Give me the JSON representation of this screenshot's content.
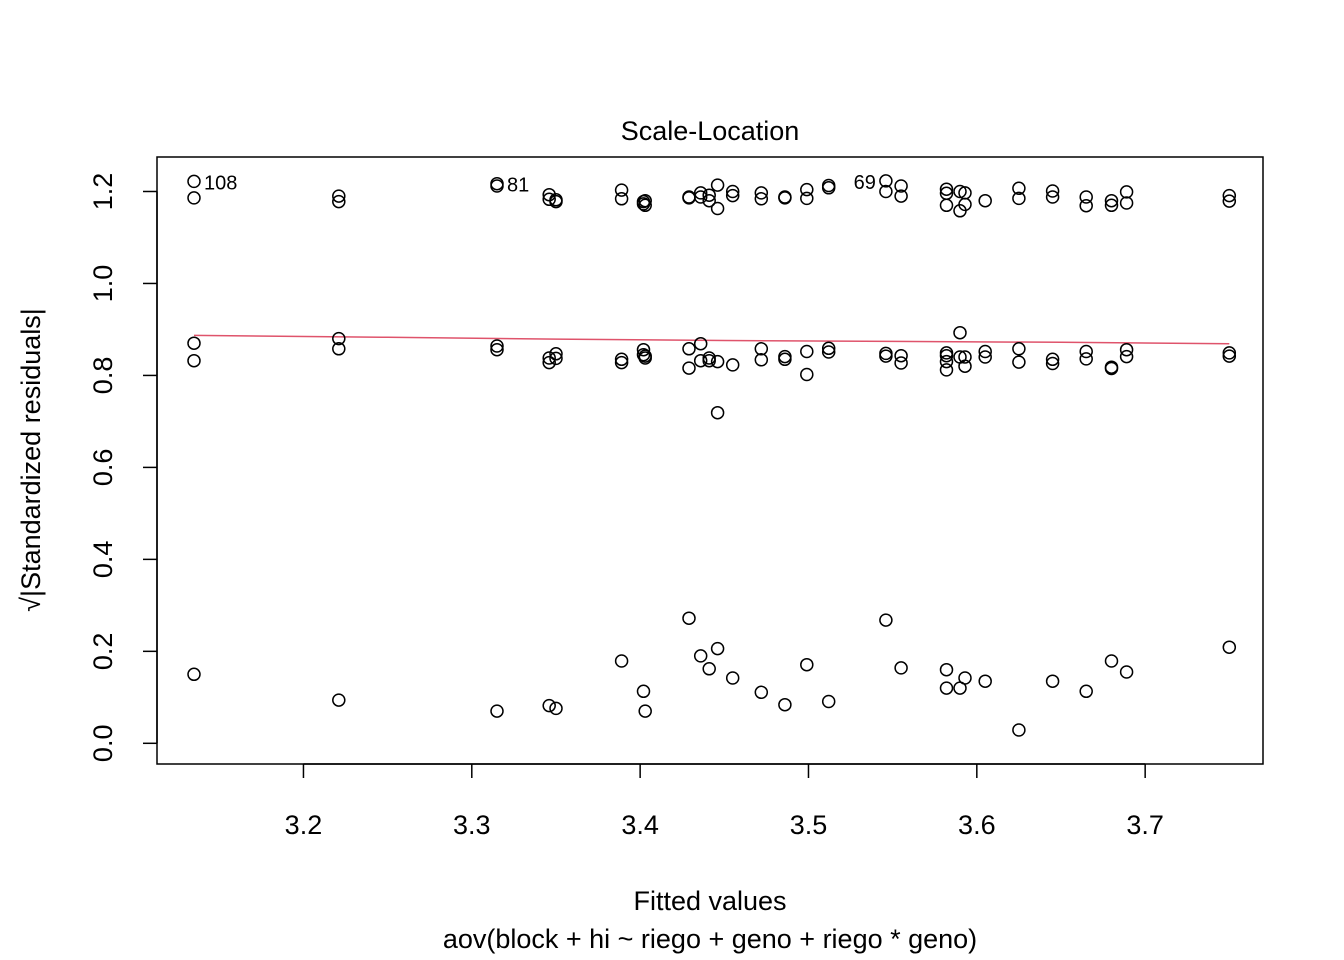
{
  "chart_data": {
    "type": "scatter",
    "title": "Scale-Location",
    "xlabel": "Fitted values",
    "subtitle": "aov(block + hi ~ riego + geno + riego * geno)",
    "ylabel": "√|Standardized residuals|",
    "ylabel_sqrt": "√",
    "ylabel_text": "|Standardized residuals|",
    "xlim": [
      3.113,
      3.77
    ],
    "ylim": [
      -0.045,
      1.275
    ],
    "x_ticks": [
      3.2,
      3.3,
      3.4,
      3.5,
      3.6,
      3.7
    ],
    "x_tick_labels": [
      "3.2",
      "3.3",
      "3.4",
      "3.5",
      "3.6",
      "3.7"
    ],
    "y_ticks": [
      0.0,
      0.2,
      0.4,
      0.6,
      0.8,
      1.0,
      1.2
    ],
    "y_tick_labels": [
      "0.0",
      "0.2",
      "0.4",
      "0.6",
      "0.8",
      "1.0",
      "1.2"
    ],
    "grid": false,
    "marker": "open-circle",
    "colors": {
      "points": "#000000",
      "smoother": "#DF536B"
    },
    "points": [
      [
        3.135,
        1.222
      ],
      [
        3.135,
        1.186
      ],
      [
        3.135,
        0.87
      ],
      [
        3.135,
        0.832
      ],
      [
        3.135,
        0.15
      ],
      [
        3.221,
        1.19
      ],
      [
        3.221,
        1.178
      ],
      [
        3.221,
        0.88
      ],
      [
        3.221,
        0.858
      ],
      [
        3.221,
        0.094
      ],
      [
        3.315,
        1.217
      ],
      [
        3.315,
        1.212
      ],
      [
        3.315,
        0.864
      ],
      [
        3.315,
        0.856
      ],
      [
        3.315,
        0.07
      ],
      [
        3.346,
        1.193
      ],
      [
        3.346,
        1.183
      ],
      [
        3.346,
        0.838
      ],
      [
        3.346,
        0.828
      ],
      [
        3.346,
        0.082
      ],
      [
        3.35,
        1.182
      ],
      [
        3.35,
        1.178
      ],
      [
        3.35,
        0.847
      ],
      [
        3.35,
        0.837
      ],
      [
        3.35,
        0.076
      ],
      [
        3.389,
        1.203
      ],
      [
        3.389,
        1.184
      ],
      [
        3.389,
        0.835
      ],
      [
        3.389,
        0.828
      ],
      [
        3.389,
        0.179
      ],
      [
        3.402,
        1.178
      ],
      [
        3.402,
        1.173
      ],
      [
        3.402,
        0.856
      ],
      [
        3.402,
        0.845
      ],
      [
        3.402,
        0.113
      ],
      [
        3.403,
        1.18
      ],
      [
        3.403,
        1.17
      ],
      [
        3.403,
        0.842
      ],
      [
        3.403,
        0.838
      ],
      [
        3.403,
        0.07
      ],
      [
        3.429,
        1.188
      ],
      [
        3.429,
        1.186
      ],
      [
        3.429,
        0.858
      ],
      [
        3.429,
        0.816
      ],
      [
        3.429,
        0.272
      ],
      [
        3.436,
        1.197
      ],
      [
        3.436,
        1.188
      ],
      [
        3.436,
        0.869
      ],
      [
        3.436,
        0.832
      ],
      [
        3.436,
        0.19
      ],
      [
        3.441,
        1.192
      ],
      [
        3.441,
        1.18
      ],
      [
        3.441,
        0.838
      ],
      [
        3.441,
        0.832
      ],
      [
        3.441,
        0.162
      ],
      [
        3.446,
        1.214
      ],
      [
        3.446,
        1.163
      ],
      [
        3.446,
        0.83
      ],
      [
        3.446,
        0.719
      ],
      [
        3.446,
        0.206
      ],
      [
        3.455,
        1.2
      ],
      [
        3.455,
        1.191
      ],
      [
        3.455,
        0.823
      ],
      [
        3.455,
        0.142
      ],
      [
        3.472,
        1.197
      ],
      [
        3.472,
        1.184
      ],
      [
        3.472,
        0.858
      ],
      [
        3.472,
        0.834
      ],
      [
        3.472,
        0.111
      ],
      [
        3.486,
        1.188
      ],
      [
        3.486,
        1.186
      ],
      [
        3.486,
        0.841
      ],
      [
        3.486,
        0.835
      ],
      [
        3.486,
        0.084
      ],
      [
        3.499,
        1.204
      ],
      [
        3.499,
        1.185
      ],
      [
        3.499,
        0.852
      ],
      [
        3.499,
        0.802
      ],
      [
        3.499,
        0.171
      ],
      [
        3.512,
        1.213
      ],
      [
        3.512,
        1.208
      ],
      [
        3.512,
        0.859
      ],
      [
        3.512,
        0.851
      ],
      [
        3.512,
        0.091
      ],
      [
        3.546,
        1.223
      ],
      [
        3.546,
        1.2
      ],
      [
        3.546,
        0.848
      ],
      [
        3.546,
        0.842
      ],
      [
        3.546,
        0.268
      ],
      [
        3.555,
        1.212
      ],
      [
        3.555,
        1.19
      ],
      [
        3.555,
        0.843
      ],
      [
        3.555,
        0.827
      ],
      [
        3.555,
        0.164
      ],
      [
        3.582,
        1.205
      ],
      [
        3.582,
        1.196
      ],
      [
        3.582,
        1.17
      ],
      [
        3.582,
        0.849
      ],
      [
        3.582,
        0.843
      ],
      [
        3.582,
        0.83
      ],
      [
        3.582,
        0.812
      ],
      [
        3.582,
        0.16
      ],
      [
        3.582,
        0.12
      ],
      [
        3.59,
        1.2
      ],
      [
        3.59,
        1.158
      ],
      [
        3.59,
        0.893
      ],
      [
        3.59,
        0.84
      ],
      [
        3.59,
        0.12
      ],
      [
        3.593,
        1.197
      ],
      [
        3.593,
        1.172
      ],
      [
        3.593,
        0.84
      ],
      [
        3.593,
        0.82
      ],
      [
        3.593,
        0.142
      ],
      [
        3.605,
        1.18
      ],
      [
        3.605,
        0.852
      ],
      [
        3.605,
        0.84
      ],
      [
        3.605,
        0.135
      ],
      [
        3.625,
        1.207
      ],
      [
        3.625,
        1.185
      ],
      [
        3.625,
        0.858
      ],
      [
        3.625,
        0.829
      ],
      [
        3.625,
        0.029
      ],
      [
        3.645,
        1.201
      ],
      [
        3.645,
        1.188
      ],
      [
        3.645,
        0.835
      ],
      [
        3.645,
        0.826
      ],
      [
        3.645,
        0.135
      ],
      [
        3.665,
        1.188
      ],
      [
        3.665,
        1.169
      ],
      [
        3.665,
        0.852
      ],
      [
        3.665,
        0.836
      ],
      [
        3.665,
        0.113
      ],
      [
        3.68,
        1.18
      ],
      [
        3.68,
        1.17
      ],
      [
        3.68,
        0.818
      ],
      [
        3.68,
        0.815
      ],
      [
        3.68,
        0.179
      ],
      [
        3.689,
        1.199
      ],
      [
        3.689,
        1.175
      ],
      [
        3.689,
        0.856
      ],
      [
        3.689,
        0.841
      ],
      [
        3.689,
        0.155
      ],
      [
        3.75,
        1.191
      ],
      [
        3.75,
        1.179
      ],
      [
        3.75,
        0.849
      ],
      [
        3.75,
        0.842
      ],
      [
        3.75,
        0.209
      ]
    ],
    "smoother": [
      [
        3.135,
        0.887
      ],
      [
        3.25,
        0.883
      ],
      [
        3.35,
        0.879
      ],
      [
        3.45,
        0.876
      ],
      [
        3.55,
        0.874
      ],
      [
        3.65,
        0.872
      ],
      [
        3.75,
        0.869
      ]
    ],
    "annotations": [
      {
        "label": "108",
        "x": 3.135,
        "y": 1.222
      },
      {
        "label": "81",
        "x": 3.315,
        "y": 1.217
      },
      {
        "label": "69",
        "x": 3.546,
        "y": 1.223,
        "side": "left"
      }
    ]
  }
}
